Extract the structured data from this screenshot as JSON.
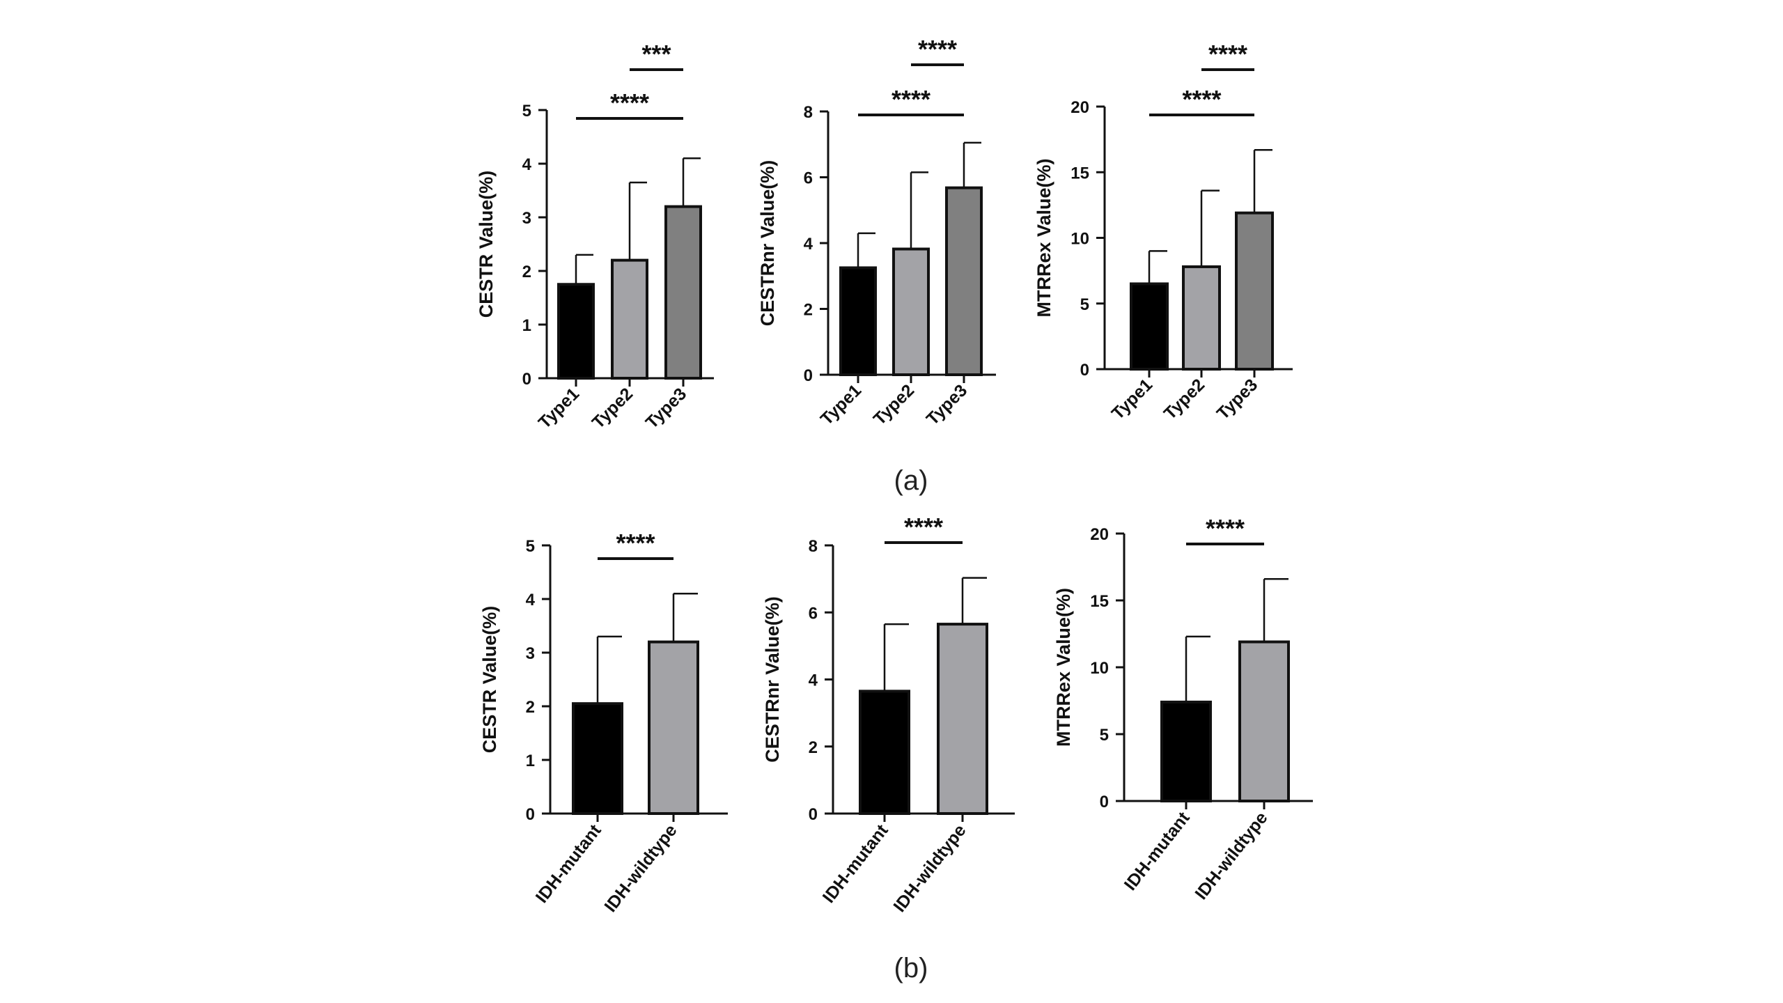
{
  "colors": {
    "axis": "#111111",
    "bar_stroke": "#111111"
  },
  "chart_data": [
    {
      "type": "bar",
      "panel": "a",
      "categories": [
        "Type1",
        "Type2",
        "Type3"
      ],
      "values": [
        1.75,
        2.2,
        3.2
      ],
      "errors": [
        0.55,
        1.45,
        0.9
      ],
      "bar_colors": [
        "#000000",
        "#a3a3a7",
        "#808080"
      ],
      "ylabel": "CESTR Value(%)",
      "ylim": [
        0,
        5
      ],
      "yticks": [
        "0",
        "1",
        "2",
        "3",
        "4",
        "5"
      ],
      "significance": [
        {
          "from": 0,
          "to": 2,
          "label": "****",
          "level": 1
        },
        {
          "from": 1,
          "to": 2,
          "label": "***",
          "level": 2
        }
      ]
    },
    {
      "type": "bar",
      "panel": "a",
      "categories": [
        "Type1",
        "Type2",
        "Type3"
      ],
      "values": [
        3.25,
        3.82,
        5.68
      ],
      "errors": [
        1.05,
        2.33,
        1.37
      ],
      "bar_colors": [
        "#000000",
        "#a3a3a7",
        "#808080"
      ],
      "ylabel": "CESTRnr Value(%)",
      "ylim": [
        0,
        8
      ],
      "yticks": [
        "0",
        "2",
        "4",
        "6",
        "8"
      ],
      "significance": [
        {
          "from": 0,
          "to": 2,
          "label": "****",
          "level": 1
        },
        {
          "from": 1,
          "to": 2,
          "label": "****",
          "level": 2
        }
      ]
    },
    {
      "type": "bar",
      "panel": "a",
      "categories": [
        "Type1",
        "Type2",
        "Type3"
      ],
      "values": [
        6.5,
        7.8,
        11.9
      ],
      "errors": [
        2.5,
        5.8,
        4.8
      ],
      "bar_colors": [
        "#000000",
        "#a3a3a7",
        "#808080"
      ],
      "ylabel": "MTRRex Value(%)",
      "ylim": [
        0,
        20
      ],
      "yticks": [
        "0",
        "5",
        "10",
        "15",
        "20"
      ],
      "significance": [
        {
          "from": 0,
          "to": 2,
          "label": "****",
          "level": 1
        },
        {
          "from": 1,
          "to": 2,
          "label": "****",
          "level": 2
        }
      ]
    },
    {
      "type": "bar",
      "panel": "b",
      "categories": [
        "IDH-mutant",
        "IDH-wildtype"
      ],
      "values": [
        2.05,
        3.2
      ],
      "errors": [
        1.25,
        0.9
      ],
      "bar_colors": [
        "#000000",
        "#a3a3a7"
      ],
      "ylabel": "CESTR Value(%)",
      "ylim": [
        0,
        5
      ],
      "yticks": [
        "0",
        "1",
        "2",
        "3",
        "4",
        "5"
      ],
      "significance": [
        {
          "from": 0,
          "to": 1,
          "label": "****",
          "level": 1
        }
      ]
    },
    {
      "type": "bar",
      "panel": "b",
      "categories": [
        "IDH-mutant",
        "IDH-wildtype"
      ],
      "values": [
        3.65,
        5.65
      ],
      "errors": [
        2.0,
        1.38
      ],
      "bar_colors": [
        "#000000",
        "#a3a3a7"
      ],
      "ylabel": "CESTRnr Value(%)",
      "ylim": [
        0,
        8
      ],
      "yticks": [
        "0",
        "2",
        "4",
        "6",
        "8"
      ],
      "significance": [
        {
          "from": 0,
          "to": 1,
          "label": "****",
          "level": 1
        }
      ]
    },
    {
      "type": "bar",
      "panel": "b",
      "categories": [
        "IDH-mutant",
        "IDH-wildtype"
      ],
      "values": [
        7.4,
        11.9
      ],
      "errors": [
        4.9,
        4.7
      ],
      "bar_colors": [
        "#000000",
        "#a3a3a7"
      ],
      "ylabel": "MTRRex Value(%)",
      "ylim": [
        0,
        20
      ],
      "yticks": [
        "0",
        "5",
        "10",
        "15",
        "20"
      ],
      "significance": [
        {
          "from": 0,
          "to": 1,
          "label": "****",
          "level": 1
        }
      ]
    }
  ],
  "panel_labels": {
    "a": "(a)",
    "b": "(b)"
  }
}
